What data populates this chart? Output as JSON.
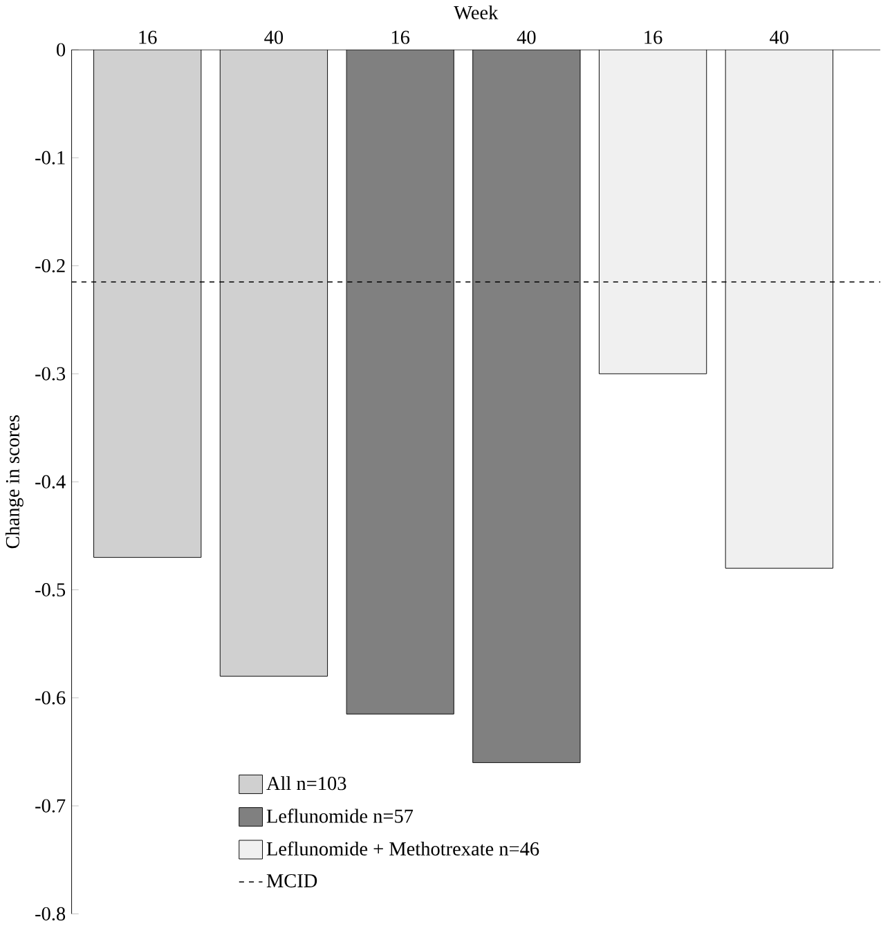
{
  "chart_data": {
    "type": "bar",
    "xlabel": "Week",
    "ylabel": "Change in scores",
    "categories": [
      "16",
      "40",
      "16",
      "40",
      "16",
      "40"
    ],
    "series": [
      {
        "name": "All n=103",
        "color": "#d0d0d0",
        "values": [
          -0.47,
          -0.58,
          null,
          null,
          null,
          null
        ]
      },
      {
        "name": "Leflunomide n=57",
        "color": "#808080",
        "values": [
          null,
          null,
          -0.615,
          -0.66,
          null,
          null
        ]
      },
      {
        "name": "Leflunomide + Methotrexate n=46",
        "color": "#f0f0f0",
        "values": [
          null,
          null,
          null,
          null,
          -0.3,
          -0.48
        ]
      }
    ],
    "ylim": [
      -0.8,
      0
    ],
    "yticks": [
      0,
      -0.1,
      -0.2,
      -0.3,
      -0.4,
      -0.5,
      -0.6,
      -0.7,
      -0.8
    ],
    "ref_lines": [
      {
        "axis": "y",
        "value": -0.215,
        "label": "MCID",
        "line_style": "dashed",
        "color": "#000000"
      }
    ],
    "legend": "bottom left"
  }
}
